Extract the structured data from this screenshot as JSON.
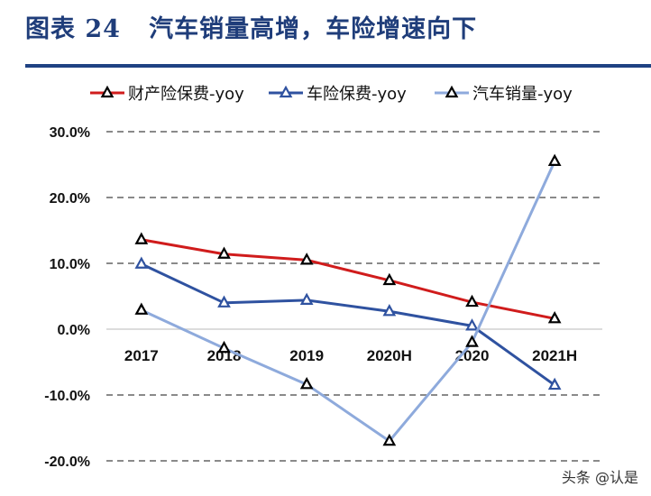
{
  "header": {
    "title": "图表 24   汽车销量高增，车险增速向下"
  },
  "watermark": "头条 @认是",
  "chart_data": {
    "type": "line",
    "title": "",
    "xlabel": "",
    "ylabel": "",
    "categories": [
      "2017",
      "2018",
      "2019",
      "2020H",
      "2020",
      "2021H"
    ],
    "ylim": [
      -20,
      30
    ],
    "yticks": [
      30,
      20,
      10,
      0,
      -10,
      -20
    ],
    "ytick_labels": [
      "30.0%",
      "20.0%",
      "10.0%",
      "0.0%",
      "-10.0%",
      "-20.0%"
    ],
    "grid": "horizontal dashed",
    "legend_position": "top",
    "series": [
      {
        "name": "财产险保费-yoy",
        "color": "#d01c1c",
        "values": [
          13.6,
          11.4,
          10.5,
          7.4,
          4.1,
          1.6
        ]
      },
      {
        "name": "车险保费-yoy",
        "color": "#2f52a0",
        "values": [
          9.9,
          4.0,
          4.4,
          2.7,
          0.5,
          -8.5
        ]
      },
      {
        "name": "汽车销量-yoy",
        "color": "#8eaadc",
        "values": [
          2.9,
          -2.9,
          -8.4,
          -17.0,
          -2.0,
          25.5
        ]
      }
    ]
  }
}
